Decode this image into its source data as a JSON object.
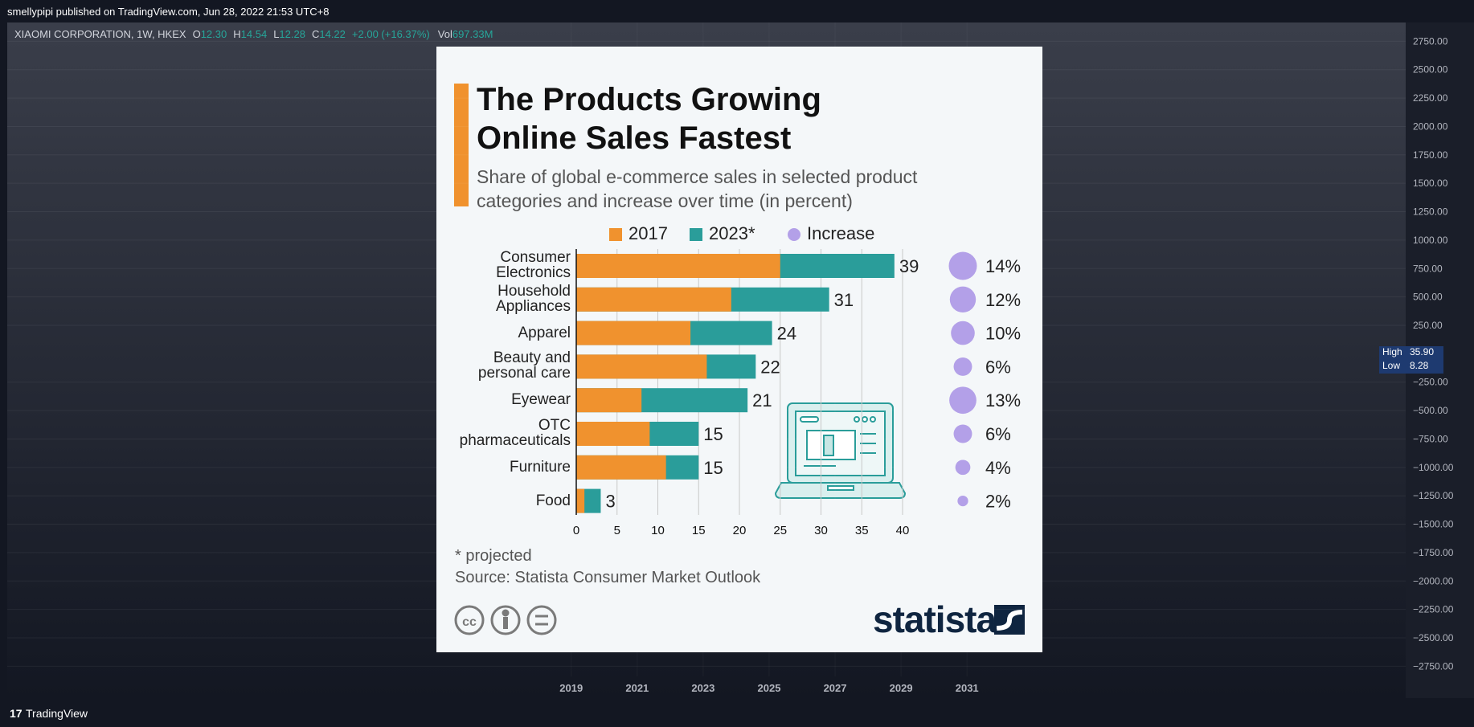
{
  "header": {
    "publisher": "smellypipi published on TradingView.com, Jun 28, 2022 21:53 UTC+8"
  },
  "symbol": {
    "name": "XIAOMI CORPORATION, 1W, HKEX",
    "fields": [
      {
        "key": "O",
        "value": "12.30"
      },
      {
        "key": "H",
        "value": "14.54"
      },
      {
        "key": "L",
        "value": "12.28"
      },
      {
        "key": "C",
        "value": "14.22"
      }
    ],
    "change": "+2.00 (+16.37%)",
    "vol_key": "Vol",
    "vol": "697.33M"
  },
  "price_axis": {
    "ylim": [
      -3030,
      2915
    ],
    "yticks": [
      {
        "value": 2750,
        "label": "2750.00"
      },
      {
        "value": 2500,
        "label": "2500.00"
      },
      {
        "value": 2250,
        "label": "2250.00"
      },
      {
        "value": 2000,
        "label": "2000.00"
      },
      {
        "value": 1750,
        "label": "1750.00"
      },
      {
        "value": 1500,
        "label": "1500.00"
      },
      {
        "value": 1250,
        "label": "1250.00"
      },
      {
        "value": 1000,
        "label": "1000.00"
      },
      {
        "value": 750,
        "label": "750.00"
      },
      {
        "value": 500,
        "label": "500.00"
      },
      {
        "value": 250,
        "label": "250.00"
      },
      {
        "value": -250,
        "label": "−250.00"
      },
      {
        "value": -500,
        "label": "−500.00"
      },
      {
        "value": -750,
        "label": "−750.00"
      },
      {
        "value": -1000,
        "label": "−1000.00"
      },
      {
        "value": -1250,
        "label": "−1250.00"
      },
      {
        "value": -1500,
        "label": "−1500.00"
      },
      {
        "value": -1750,
        "label": "−1750.00"
      },
      {
        "value": -2000,
        "label": "−2000.00"
      },
      {
        "value": -2250,
        "label": "−2250.00"
      },
      {
        "value": -2500,
        "label": "−2500.00"
      },
      {
        "value": -2750,
        "label": "−2750.00"
      }
    ]
  },
  "high_low": {
    "high_label": "High",
    "high": "35.90",
    "low_label": "Low",
    "low": "8.28"
  },
  "time_axis": {
    "xlim": [
      2001.9,
      2044.3
    ],
    "xticks": [
      2019,
      2021,
      2023,
      2025,
      2027,
      2029,
      2031
    ]
  },
  "brand": "TradingView",
  "chart_data": {
    "type": "bar",
    "orientation": "horizontal",
    "title": "The Products Growing\nOnline Sales Fastest",
    "subtitle": "Share of global e-commerce sales in selected product\ncategories and increase over time (in percent)",
    "categories": [
      "Consumer\nElectronics",
      "Household\nAppliances",
      "Apparel",
      "Beauty and\npersonal care",
      "Eyewear",
      "OTC\npharmaceuticals",
      "Furniture",
      "Food"
    ],
    "series": [
      {
        "name": "2017",
        "color": "#f0922e",
        "values": [
          25,
          19,
          14,
          16,
          8,
          9,
          11,
          1
        ]
      },
      {
        "name": "2023*",
        "color": "#2a9d9a",
        "values": [
          39,
          31,
          24,
          22,
          21,
          15,
          15,
          3
        ]
      },
      {
        "name": "Increase",
        "color": "#b3a0e8",
        "values": [
          14,
          12,
          10,
          6,
          13,
          6,
          4,
          2
        ],
        "value_labels": [
          "14%",
          "12%",
          "10%",
          "6%",
          "13%",
          "6%",
          "4%",
          "2%"
        ]
      }
    ],
    "xlim": [
      0,
      40
    ],
    "xticks": [
      0,
      5,
      10,
      15,
      20,
      25,
      30,
      35,
      40
    ],
    "grid": true,
    "footnote": "* projected",
    "source": "Source: Statista Consumer Market Outlook",
    "logo": "statista"
  }
}
